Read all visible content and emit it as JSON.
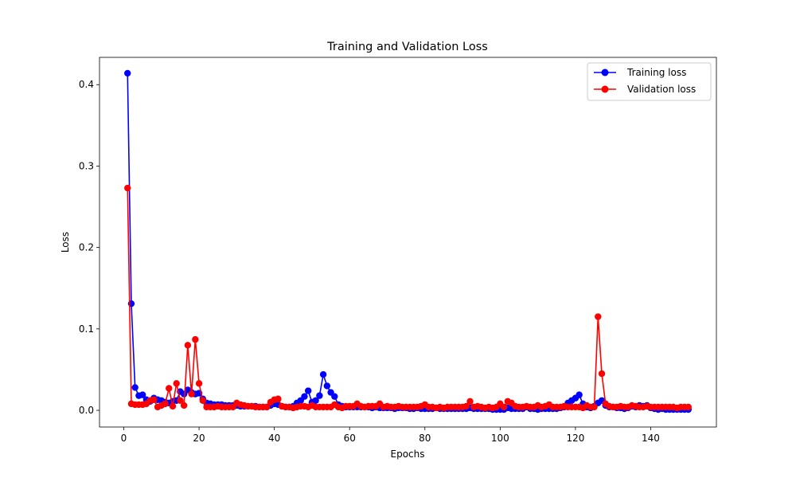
{
  "chart_data": {
    "type": "line",
    "title": "Training and Validation Loss",
    "xlabel": "Epochs",
    "ylabel": "Loss",
    "xlim": [
      -6.45,
      157.45
    ],
    "ylim": [
      -0.0205,
      0.4335
    ],
    "xticks": [
      0,
      20,
      40,
      60,
      80,
      100,
      120,
      140
    ],
    "yticks": [
      0.0,
      0.1,
      0.2,
      0.3,
      0.4
    ],
    "ytick_labels": [
      "0.0",
      "0.1",
      "0.2",
      "0.3",
      "0.4"
    ],
    "grid": false,
    "legend": "top-right",
    "x": [
      1,
      2,
      3,
      4,
      5,
      6,
      7,
      8,
      9,
      10,
      11,
      12,
      13,
      14,
      15,
      16,
      17,
      18,
      19,
      20,
      21,
      22,
      23,
      24,
      25,
      26,
      27,
      28,
      29,
      30,
      31,
      32,
      33,
      34,
      35,
      36,
      37,
      38,
      39,
      40,
      41,
      42,
      43,
      44,
      45,
      46,
      47,
      48,
      49,
      50,
      51,
      52,
      53,
      54,
      55,
      56,
      57,
      58,
      59,
      60,
      61,
      62,
      63,
      64,
      65,
      66,
      67,
      68,
      69,
      70,
      71,
      72,
      73,
      74,
      75,
      76,
      77,
      78,
      79,
      80,
      81,
      82,
      83,
      84,
      85,
      86,
      87,
      88,
      89,
      90,
      91,
      92,
      93,
      94,
      95,
      96,
      97,
      98,
      99,
      100,
      101,
      102,
      103,
      104,
      105,
      106,
      107,
      108,
      109,
      110,
      111,
      112,
      113,
      114,
      115,
      116,
      117,
      118,
      119,
      120,
      121,
      122,
      123,
      124,
      125,
      126,
      127,
      128,
      129,
      130,
      131,
      132,
      133,
      134,
      135,
      136,
      137,
      138,
      139,
      140,
      141,
      142,
      143,
      144,
      145,
      146,
      147,
      148,
      149,
      150
    ],
    "series": [
      {
        "name": "Training loss",
        "color": "#0000ff",
        "values": [
          0.414,
          0.131,
          0.028,
          0.018,
          0.019,
          0.013,
          0.011,
          0.015,
          0.013,
          0.012,
          0.01,
          0.009,
          0.011,
          0.012,
          0.023,
          0.02,
          0.025,
          0.022,
          0.02,
          0.021,
          0.014,
          0.009,
          0.008,
          0.007,
          0.007,
          0.007,
          0.006,
          0.006,
          0.006,
          0.006,
          0.005,
          0.005,
          0.005,
          0.005,
          0.005,
          0.004,
          0.004,
          0.004,
          0.006,
          0.008,
          0.007,
          0.005,
          0.004,
          0.004,
          0.005,
          0.009,
          0.012,
          0.017,
          0.024,
          0.01,
          0.012,
          0.018,
          0.044,
          0.03,
          0.022,
          0.017,
          0.007,
          0.005,
          0.004,
          0.004,
          0.004,
          0.004,
          0.004,
          0.004,
          0.004,
          0.003,
          0.004,
          0.003,
          0.003,
          0.003,
          0.003,
          0.002,
          0.003,
          0.003,
          0.003,
          0.002,
          0.002,
          0.003,
          0.002,
          0.002,
          0.002,
          0.002,
          0.003,
          0.002,
          0.002,
          0.002,
          0.002,
          0.002,
          0.002,
          0.002,
          0.002,
          0.003,
          0.002,
          0.002,
          0.002,
          0.002,
          0.002,
          0.001,
          0.001,
          0.001,
          0.001,
          0.003,
          0.002,
          0.002,
          0.002,
          0.002,
          0.004,
          0.002,
          0.002,
          0.001,
          0.002,
          0.002,
          0.002,
          0.002,
          0.002,
          0.003,
          0.004,
          0.009,
          0.012,
          0.015,
          0.019,
          0.008,
          0.004,
          0.003,
          0.005,
          0.009,
          0.012,
          0.006,
          0.004,
          0.004,
          0.003,
          0.003,
          0.002,
          0.003,
          0.005,
          0.004,
          0.006,
          0.005,
          0.006,
          0.003,
          0.002,
          0.001,
          0.002,
          0.001,
          0.001,
          0.001,
          0.001,
          0.001,
          0.001,
          0.001
        ]
      },
      {
        "name": "Validation loss",
        "color": "#ff0000",
        "values": [
          0.273,
          0.008,
          0.007,
          0.007,
          0.007,
          0.008,
          0.012,
          0.013,
          0.004,
          0.006,
          0.008,
          0.027,
          0.005,
          0.033,
          0.012,
          0.006,
          0.08,
          0.02,
          0.087,
          0.033,
          0.012,
          0.004,
          0.004,
          0.004,
          0.005,
          0.004,
          0.004,
          0.004,
          0.004,
          0.009,
          0.007,
          0.006,
          0.005,
          0.005,
          0.004,
          0.004,
          0.004,
          0.004,
          0.01,
          0.013,
          0.014,
          0.005,
          0.004,
          0.004,
          0.003,
          0.004,
          0.005,
          0.005,
          0.004,
          0.006,
          0.004,
          0.004,
          0.004,
          0.004,
          0.004,
          0.007,
          0.004,
          0.003,
          0.005,
          0.005,
          0.005,
          0.008,
          0.005,
          0.004,
          0.005,
          0.005,
          0.005,
          0.008,
          0.004,
          0.005,
          0.004,
          0.004,
          0.005,
          0.004,
          0.004,
          0.004,
          0.004,
          0.004,
          0.005,
          0.007,
          0.004,
          0.004,
          0.003,
          0.004,
          0.003,
          0.004,
          0.004,
          0.004,
          0.004,
          0.004,
          0.005,
          0.011,
          0.004,
          0.005,
          0.004,
          0.003,
          0.004,
          0.003,
          0.004,
          0.008,
          0.004,
          0.011,
          0.009,
          0.005,
          0.004,
          0.004,
          0.005,
          0.004,
          0.004,
          0.006,
          0.004,
          0.005,
          0.007,
          0.004,
          0.004,
          0.004,
          0.005,
          0.004,
          0.004,
          0.004,
          0.004,
          0.003,
          0.006,
          0.004,
          0.004,
          0.115,
          0.045,
          0.008,
          0.005,
          0.004,
          0.004,
          0.005,
          0.004,
          0.004,
          0.006,
          0.005,
          0.004,
          0.004,
          0.005,
          0.004,
          0.004,
          0.004,
          0.004,
          0.004,
          0.004,
          0.004,
          0.003,
          0.004,
          0.004,
          0.004
        ]
      }
    ]
  }
}
